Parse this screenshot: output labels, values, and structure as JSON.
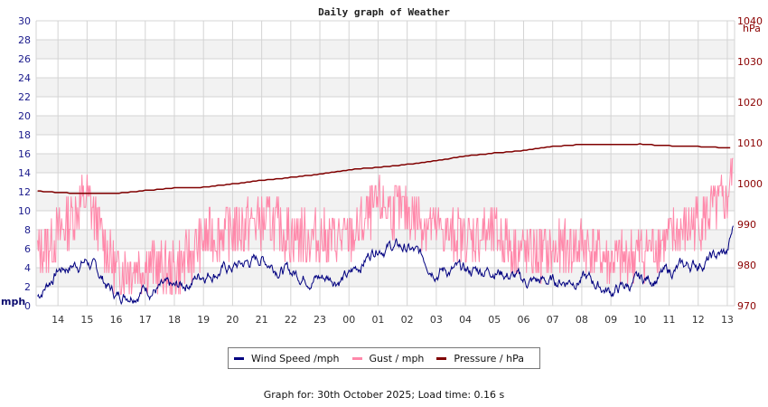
{
  "chart_data": {
    "type": "line",
    "title": "Daily graph of Weather",
    "xlabel": "",
    "ylabel_left": "mph",
    "ylabel_right": "hPa",
    "ylim_left": [
      0,
      30
    ],
    "ylim_right": [
      970,
      1040
    ],
    "yticks_left": [
      0,
      2,
      4,
      6,
      8,
      10,
      12,
      14,
      16,
      18,
      20,
      22,
      24,
      26,
      28,
      30
    ],
    "yticks_right": [
      970,
      980,
      990,
      1000,
      1010,
      1020,
      1030,
      1040
    ],
    "x_tick_labels": [
      "14",
      "15",
      "16",
      "17",
      "18",
      "19",
      "20",
      "21",
      "22",
      "23",
      "00",
      "01",
      "02",
      "03",
      "04",
      "05",
      "06",
      "07",
      "08",
      "09",
      "10",
      "11",
      "12",
      "13"
    ],
    "grid": true,
    "legend_position": "bottom",
    "colors": {
      "wind": "#000080",
      "gust": "#ff88aa",
      "pressure": "#800000",
      "band": "#f2f2f2",
      "grid": "#d4d4d4"
    },
    "x_hours": [
      13.3,
      14,
      15,
      16,
      17,
      18,
      19,
      20,
      21,
      22,
      23,
      24,
      25,
      26,
      27,
      28,
      29,
      30,
      31,
      32,
      33,
      34,
      35,
      36,
      37,
      37.2
    ],
    "series": [
      {
        "name": "Wind Speed /mph",
        "axis": "left",
        "values": [
          1.0,
          3.8,
          4.8,
          1.0,
          2.0,
          1.5,
          3.5,
          4.0,
          5.0,
          3.5,
          3.0,
          3.0,
          6.5,
          6.0,
          4.0,
          3.5,
          4.0,
          2.5,
          2.5,
          3.0,
          1.5,
          2.5,
          3.5,
          4.5,
          5.5,
          8.0
        ]
      },
      {
        "name": "Gust / mph",
        "axis": "left",
        "values": [
          5.5,
          7.5,
          11.5,
          3.5,
          4.5,
          3.5,
          7.0,
          8.0,
          9.0,
          7.5,
          7.0,
          7.0,
          10.5,
          10.0,
          8.0,
          7.0,
          7.5,
          5.5,
          5.5,
          6.5,
          4.5,
          5.5,
          7.0,
          9.0,
          11.0,
          15.0
        ]
      },
      {
        "name": "Pressure / hPa",
        "axis": "right",
        "values": [
          998.2,
          997.8,
          997.5,
          997.6,
          998.3,
          998.9,
          999.1,
          999.9,
          1000.8,
          1001.5,
          1002.3,
          1003.4,
          1004.0,
          1004.7,
          1005.6,
          1006.8,
          1007.5,
          1008.1,
          1009.1,
          1009.6,
          1009.5,
          1009.7,
          1009.3,
          1009.1,
          1008.8,
          1008.8
        ]
      }
    ]
  },
  "legend": {
    "items": [
      {
        "label": "Wind Speed /mph",
        "color": "#000080"
      },
      {
        "label": "Gust / mph",
        "color": "#ff88aa"
      },
      {
        "label": "Pressure / hPa",
        "color": "#800000"
      }
    ]
  },
  "footer": {
    "text": "Graph for: 30th October 2025; Load time: 0.16 s"
  }
}
